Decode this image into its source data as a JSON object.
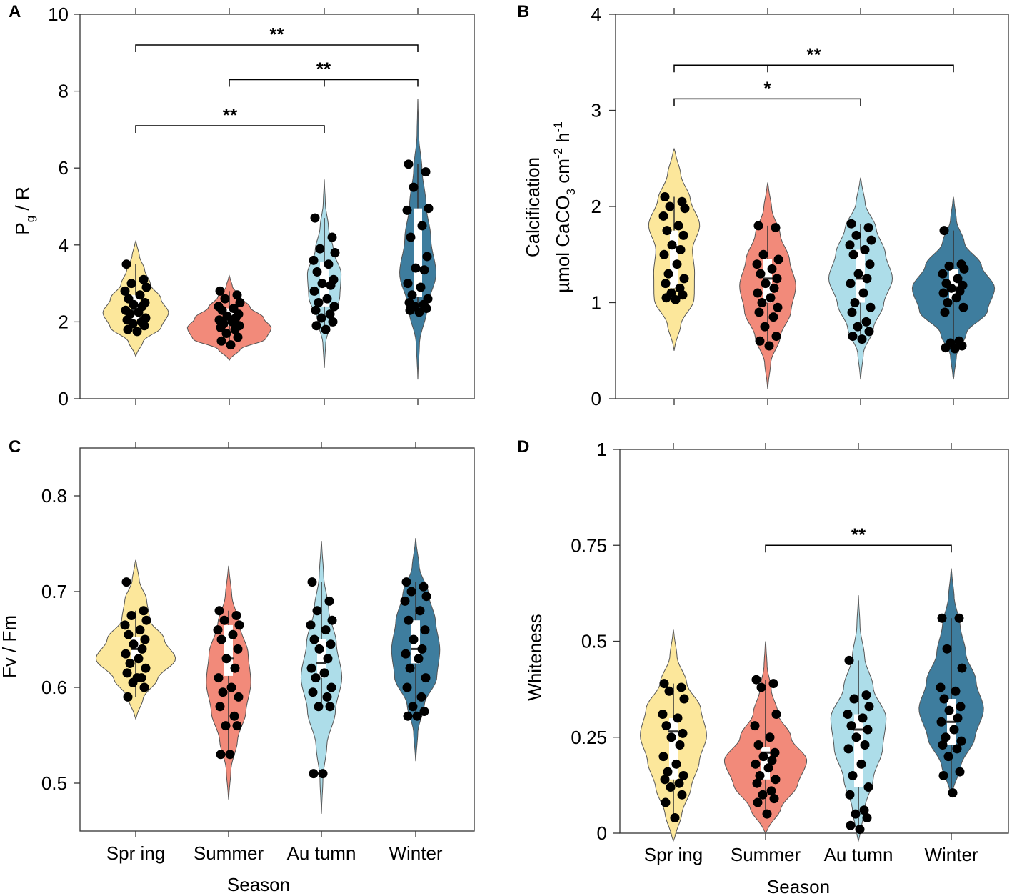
{
  "figure": {
    "xlabel": "Season",
    "season_colors": [
      "#FCE79B",
      "#F28A7A",
      "#ADDDE9",
      "#3E7D9E"
    ]
  },
  "chart_data": [
    {
      "panel": "A",
      "type": "violin",
      "categories": [
        "Spring",
        "Summer",
        "Autumn",
        "Winter"
      ],
      "ylabel_main": "P",
      "ylabel_sub": "g",
      "ylabel_rest": " / R",
      "ylim": [
        0,
        10
      ],
      "yticks": [
        0,
        2,
        4,
        6,
        8,
        10
      ],
      "ytick_labels": [
        "0",
        "2",
        "4",
        "6",
        "8",
        "10"
      ],
      "show_xtick_labels": false,
      "violins": [
        {
          "range": [
            1.1,
            4.1
          ],
          "profile": [
            0.05,
            0.3,
            0.85,
            1.0,
            0.75,
            0.45,
            0.3,
            0.15,
            0.05
          ],
          "width": 0.36
        },
        {
          "range": [
            1.0,
            3.2
          ],
          "profile": [
            0.05,
            0.35,
            0.95,
            1.0,
            0.8,
            0.5,
            0.3,
            0.1,
            0.03
          ],
          "width": 0.46
        },
        {
          "range": [
            0.8,
            5.7
          ],
          "profile": [
            0.03,
            0.1,
            0.4,
            0.85,
            0.9,
            0.5,
            0.25,
            0.08,
            0.02
          ],
          "width": 0.2
        },
        {
          "range": [
            0.5,
            7.8
          ],
          "profile": [
            0.02,
            0.12,
            0.55,
            1.0,
            0.7,
            0.45,
            0.25,
            0.06,
            0.02
          ],
          "width": 0.2
        }
      ],
      "boxes": [
        {
          "q1": 2.05,
          "median": 2.3,
          "q3": 2.7,
          "min": 1.7,
          "max": 3.5
        },
        {
          "q1": 1.9,
          "median": 2.1,
          "q3": 2.35,
          "min": 1.4,
          "max": 2.8
        },
        {
          "q1": 2.4,
          "median": 2.95,
          "q3": 3.55,
          "min": 1.8,
          "max": 4.7
        },
        {
          "q1": 2.65,
          "median": 3.35,
          "q3": 4.95,
          "min": 2.3,
          "max": 6.1
        }
      ],
      "points": [
        [
          3.5,
          3.1,
          3.0,
          2.9,
          2.8,
          2.7,
          2.6,
          2.5,
          2.45,
          2.4,
          2.3,
          2.25,
          2.2,
          2.1,
          2.05,
          2.0,
          1.95,
          1.9,
          1.8,
          1.75
        ],
        [
          2.8,
          2.7,
          2.6,
          2.5,
          2.4,
          2.35,
          2.3,
          2.2,
          2.15,
          2.1,
          2.05,
          2.0,
          1.95,
          1.9,
          1.85,
          1.8,
          1.7,
          1.6,
          1.5,
          1.4
        ],
        [
          4.7,
          4.2,
          3.9,
          3.8,
          3.6,
          3.5,
          3.3,
          3.1,
          3.0,
          2.95,
          2.8,
          2.6,
          2.5,
          2.4,
          2.3,
          2.2,
          2.1,
          2.0,
          1.9,
          1.8
        ],
        [
          6.1,
          5.9,
          5.5,
          4.95,
          4.9,
          4.5,
          4.2,
          3.7,
          3.4,
          3.35,
          3.0,
          2.9,
          2.7,
          2.6,
          2.5,
          2.45,
          2.4,
          2.35,
          2.3,
          2.25
        ]
      ],
      "significance": [
        {
          "from": 0,
          "to": 3,
          "y": 9.2,
          "label": "**"
        },
        {
          "from": 1,
          "to": 3,
          "y": 8.3,
          "label": "**"
        },
        {
          "from": 0,
          "to": 2,
          "y": 7.1,
          "label": "**"
        }
      ]
    },
    {
      "panel": "B",
      "type": "violin",
      "categories": [
        "Spring",
        "Summer",
        "Autumn",
        "Winter"
      ],
      "ylabel_line1": "Calcification",
      "ylabel_line2": "µmol CaCO",
      "ylabel_sub1": "3",
      "ylabel_mid": " cm",
      "ylabel_sup1": "-2",
      "ylabel_end": " h",
      "ylabel_sup2": "-1",
      "ylim": [
        0,
        4
      ],
      "yticks": [
        0,
        1,
        2,
        3,
        4
      ],
      "ytick_labels": [
        "0",
        "1",
        "2",
        "3",
        "4"
      ],
      "show_xtick_labels": false,
      "violins": [
        {
          "range": [
            0.5,
            2.6
          ],
          "profile": [
            0.05,
            0.35,
            0.85,
            0.8,
            0.7,
            1.0,
            0.7,
            0.35,
            0.1
          ],
          "width": 0.28
        },
        {
          "range": [
            0.1,
            2.25
          ],
          "profile": [
            0.03,
            0.15,
            0.5,
            0.85,
            1.0,
            0.8,
            0.5,
            0.2,
            0.05
          ],
          "width": 0.3
        },
        {
          "range": [
            0.2,
            2.3
          ],
          "profile": [
            0.03,
            0.12,
            0.45,
            0.75,
            1.0,
            0.8,
            0.55,
            0.2,
            0.05
          ],
          "width": 0.34
        },
        {
          "range": [
            0.2,
            2.1
          ],
          "profile": [
            0.03,
            0.1,
            0.35,
            0.85,
            1.0,
            0.7,
            0.3,
            0.1,
            0.03
          ],
          "width": 0.44
        }
      ],
      "boxes": [
        {
          "q1": 1.15,
          "median": 1.58,
          "q3": 1.75,
          "min": 1.03,
          "max": 2.1
        },
        {
          "q1": 1.0,
          "median": 1.25,
          "q3": 1.45,
          "min": 0.55,
          "max": 1.8
        },
        {
          "q1": 1.0,
          "median": 1.25,
          "q3": 1.55,
          "min": 0.62,
          "max": 1.82
        },
        {
          "q1": 1.03,
          "median": 1.16,
          "q3": 1.35,
          "min": 0.53,
          "max": 1.75
        }
      ],
      "points": [
        [
          2.1,
          2.05,
          2.0,
          1.98,
          1.9,
          1.8,
          1.75,
          1.7,
          1.6,
          1.55,
          1.5,
          1.4,
          1.3,
          1.25,
          1.2,
          1.15,
          1.1,
          1.08,
          1.05,
          1.03
        ],
        [
          1.8,
          1.78,
          1.5,
          1.45,
          1.4,
          1.35,
          1.3,
          1.25,
          1.2,
          1.15,
          1.1,
          1.05,
          1.0,
          0.95,
          0.9,
          0.85,
          0.75,
          0.65,
          0.6,
          0.55
        ],
        [
          1.82,
          1.78,
          1.7,
          1.65,
          1.6,
          1.55,
          1.5,
          1.4,
          1.3,
          1.25,
          1.2,
          1.1,
          1.0,
          0.95,
          0.9,
          0.8,
          0.75,
          0.7,
          0.65,
          0.62
        ],
        [
          1.75,
          1.4,
          1.38,
          1.35,
          1.3,
          1.25,
          1.2,
          1.18,
          1.15,
          1.12,
          1.1,
          1.05,
          1.0,
          0.95,
          0.9,
          0.6,
          0.58,
          0.55,
          0.53,
          0.52
        ]
      ],
      "significance": [
        {
          "from": 0,
          "to": 3,
          "y": 3.47,
          "tick_at": 1,
          "label": "**"
        },
        {
          "from": 0,
          "to": 2,
          "y": 3.12,
          "label": "*"
        }
      ]
    },
    {
      "panel": "C",
      "type": "violin",
      "categories": [
        "Spring",
        "Summer",
        "Autumn",
        "Winter"
      ],
      "ylabel": "Fv / Fm",
      "ylim": [
        0.45,
        0.85
      ],
      "yticks": [
        0.5,
        0.6,
        0.7,
        0.8
      ],
      "ytick_labels": [
        "0.5",
        "0.6",
        "0.7",
        "0.8"
      ],
      "show_xtick_labels": true,
      "xtick_labels": [
        "Spr ing",
        "Summer",
        "Au tumn",
        "Winter"
      ],
      "violins": [
        {
          "range": [
            0.567,
            0.733
          ],
          "profile": [
            0.05,
            0.25,
            0.6,
            1.0,
            0.7,
            0.35,
            0.3,
            0.12,
            0.04
          ],
          "width": 0.44
        },
        {
          "range": [
            0.483,
            0.727
          ],
          "profile": [
            0.04,
            0.15,
            0.45,
            0.8,
            1.0,
            0.9,
            0.55,
            0.2,
            0.05
          ],
          "width": 0.24
        },
        {
          "range": [
            0.468,
            0.753
          ],
          "profile": [
            0.03,
            0.1,
            0.3,
            0.7,
            1.0,
            0.75,
            0.4,
            0.15,
            0.04
          ],
          "width": 0.22
        },
        {
          "range": [
            0.523,
            0.756
          ],
          "profile": [
            0.03,
            0.12,
            0.4,
            0.9,
            1.0,
            0.85,
            0.6,
            0.2,
            0.04
          ],
          "width": 0.26
        }
      ],
      "boxes": [
        {
          "q1": 0.628,
          "median": 0.64,
          "q3": 0.653,
          "min": 0.59,
          "max": 0.68
        },
        {
          "q1": 0.612,
          "median": 0.63,
          "q3": 0.665,
          "min": 0.53,
          "max": 0.68
        },
        {
          "q1": 0.61,
          "median": 0.625,
          "q3": 0.65,
          "min": 0.58,
          "max": 0.71
        },
        {
          "q1": 0.625,
          "median": 0.64,
          "q3": 0.67,
          "min": 0.57,
          "max": 0.71
        }
      ],
      "points": [
        [
          0.71,
          0.68,
          0.675,
          0.67,
          0.665,
          0.66,
          0.655,
          0.65,
          0.645,
          0.64,
          0.635,
          0.63,
          0.625,
          0.62,
          0.615,
          0.61,
          0.605,
          0.6,
          0.59,
          0.61
        ],
        [
          0.68,
          0.675,
          0.67,
          0.665,
          0.66,
          0.655,
          0.65,
          0.64,
          0.63,
          0.62,
          0.61,
          0.6,
          0.595,
          0.59,
          0.58,
          0.57,
          0.56,
          0.56,
          0.53,
          0.53
        ],
        [
          0.71,
          0.69,
          0.68,
          0.67,
          0.665,
          0.66,
          0.65,
          0.645,
          0.64,
          0.63,
          0.62,
          0.615,
          0.61,
          0.6,
          0.595,
          0.59,
          0.58,
          0.58,
          0.51,
          0.51
        ],
        [
          0.71,
          0.705,
          0.7,
          0.695,
          0.69,
          0.68,
          0.67,
          0.66,
          0.65,
          0.64,
          0.635,
          0.63,
          0.62,
          0.61,
          0.6,
          0.59,
          0.58,
          0.575,
          0.57,
          0.57
        ]
      ],
      "significance": []
    },
    {
      "panel": "D",
      "type": "violin",
      "categories": [
        "Spring",
        "Summer",
        "Autumn",
        "Winter"
      ],
      "ylabel": "Whiteness",
      "ylim": [
        0,
        1
      ],
      "yticks": [
        0,
        0.25,
        0.5,
        0.75,
        1
      ],
      "ytick_labels": [
        "0",
        "0.25",
        "0.5",
        "0.75",
        "1"
      ],
      "show_xtick_labels": true,
      "xtick_labels": [
        "Spr ing",
        "Summer",
        "Au tumn",
        "Winter"
      ],
      "violins": [
        {
          "range": [
            -0.02,
            0.53
          ],
          "profile": [
            0.1,
            0.35,
            0.6,
            0.8,
            1.0,
            0.85,
            0.45,
            0.15,
            0.04
          ],
          "width": 0.36
        },
        {
          "range": [
            0.0,
            0.5
          ],
          "profile": [
            0.1,
            0.5,
            0.85,
            1.0,
            0.6,
            0.3,
            0.15,
            0.05,
            0.02
          ],
          "width": 0.46
        },
        {
          "range": [
            -0.02,
            0.62
          ],
          "profile": [
            0.1,
            0.3,
            0.6,
            0.9,
            1.0,
            0.55,
            0.25,
            0.08,
            0.02
          ],
          "width": 0.3
        },
        {
          "range": [
            0.1,
            0.69
          ],
          "profile": [
            0.1,
            0.4,
            0.8,
            1.0,
            0.75,
            0.45,
            0.3,
            0.12,
            0.03
          ],
          "width": 0.36
        }
      ],
      "boxes": [
        {
          "q1": 0.14,
          "median": 0.265,
          "q3": 0.3,
          "min": 0.04,
          "max": 0.39
        },
        {
          "q1": 0.14,
          "median": 0.21,
          "q3": 0.225,
          "min": 0.05,
          "max": 0.4
        },
        {
          "q1": 0.12,
          "median": 0.27,
          "q3": 0.31,
          "min": 0.01,
          "max": 0.45
        },
        {
          "q1": 0.23,
          "median": 0.29,
          "q3": 0.35,
          "min": 0.105,
          "max": 0.56
        }
      ],
      "points": [
        [
          0.39,
          0.38,
          0.37,
          0.35,
          0.31,
          0.3,
          0.28,
          0.26,
          0.25,
          0.23,
          0.2,
          0.18,
          0.16,
          0.15,
          0.14,
          0.13,
          0.12,
          0.1,
          0.08,
          0.04
        ],
        [
          0.4,
          0.39,
          0.38,
          0.31,
          0.28,
          0.25,
          0.23,
          0.21,
          0.2,
          0.19,
          0.18,
          0.17,
          0.15,
          0.14,
          0.13,
          0.11,
          0.1,
          0.09,
          0.08,
          0.05
        ],
        [
          0.45,
          0.36,
          0.35,
          0.33,
          0.31,
          0.3,
          0.28,
          0.27,
          0.25,
          0.23,
          0.22,
          0.18,
          0.15,
          0.12,
          0.1,
          0.06,
          0.05,
          0.04,
          0.02,
          0.01
        ],
        [
          0.56,
          0.56,
          0.48,
          0.43,
          0.38,
          0.37,
          0.35,
          0.33,
          0.32,
          0.3,
          0.29,
          0.27,
          0.25,
          0.24,
          0.23,
          0.22,
          0.2,
          0.16,
          0.15,
          0.105
        ]
      ],
      "significance": [
        {
          "from": 1,
          "to": 3,
          "y": 0.75,
          "label": "**"
        }
      ]
    }
  ]
}
